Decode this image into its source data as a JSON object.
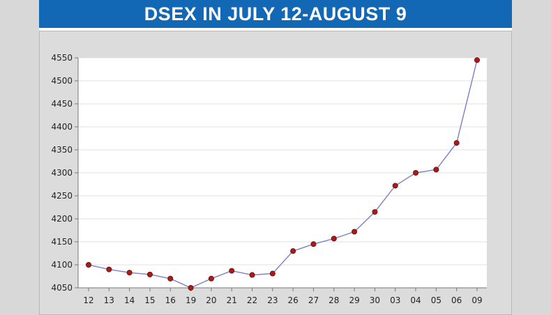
{
  "title": "DSEX IN JULY 12-AUGUST 9",
  "colors": {
    "title_bar": "#1268b4",
    "line": "#7b7fc4",
    "marker": "#b01818",
    "plot_background": "#ffffff",
    "panel_background": "#dcdcdc"
  },
  "chart_data": {
    "type": "line",
    "title": "DSEX IN JULY 12-AUGUST 9",
    "xlabel": "",
    "ylabel": "",
    "categories": [
      "12",
      "13",
      "14",
      "15",
      "16",
      "19",
      "20",
      "21",
      "22",
      "23",
      "26",
      "27",
      "28",
      "29",
      "30",
      "03",
      "04",
      "05",
      "06",
      "09"
    ],
    "series": [
      {
        "values": [
          4100,
          4090,
          4083,
          4079,
          4070,
          4050,
          4070,
          4087,
          4078,
          4081,
          4130,
          4145,
          4157,
          4172,
          4215,
          4272,
          4300,
          4307,
          4365,
          4545
        ]
      }
    ],
    "ylim": [
      4050,
      4550
    ],
    "yticks": [
      "4050",
      "4100",
      "4150",
      "4200",
      "4250",
      "4300",
      "4350",
      "4400",
      "4450",
      "4500",
      "4550"
    ],
    "grid": true,
    "legend": "none"
  }
}
